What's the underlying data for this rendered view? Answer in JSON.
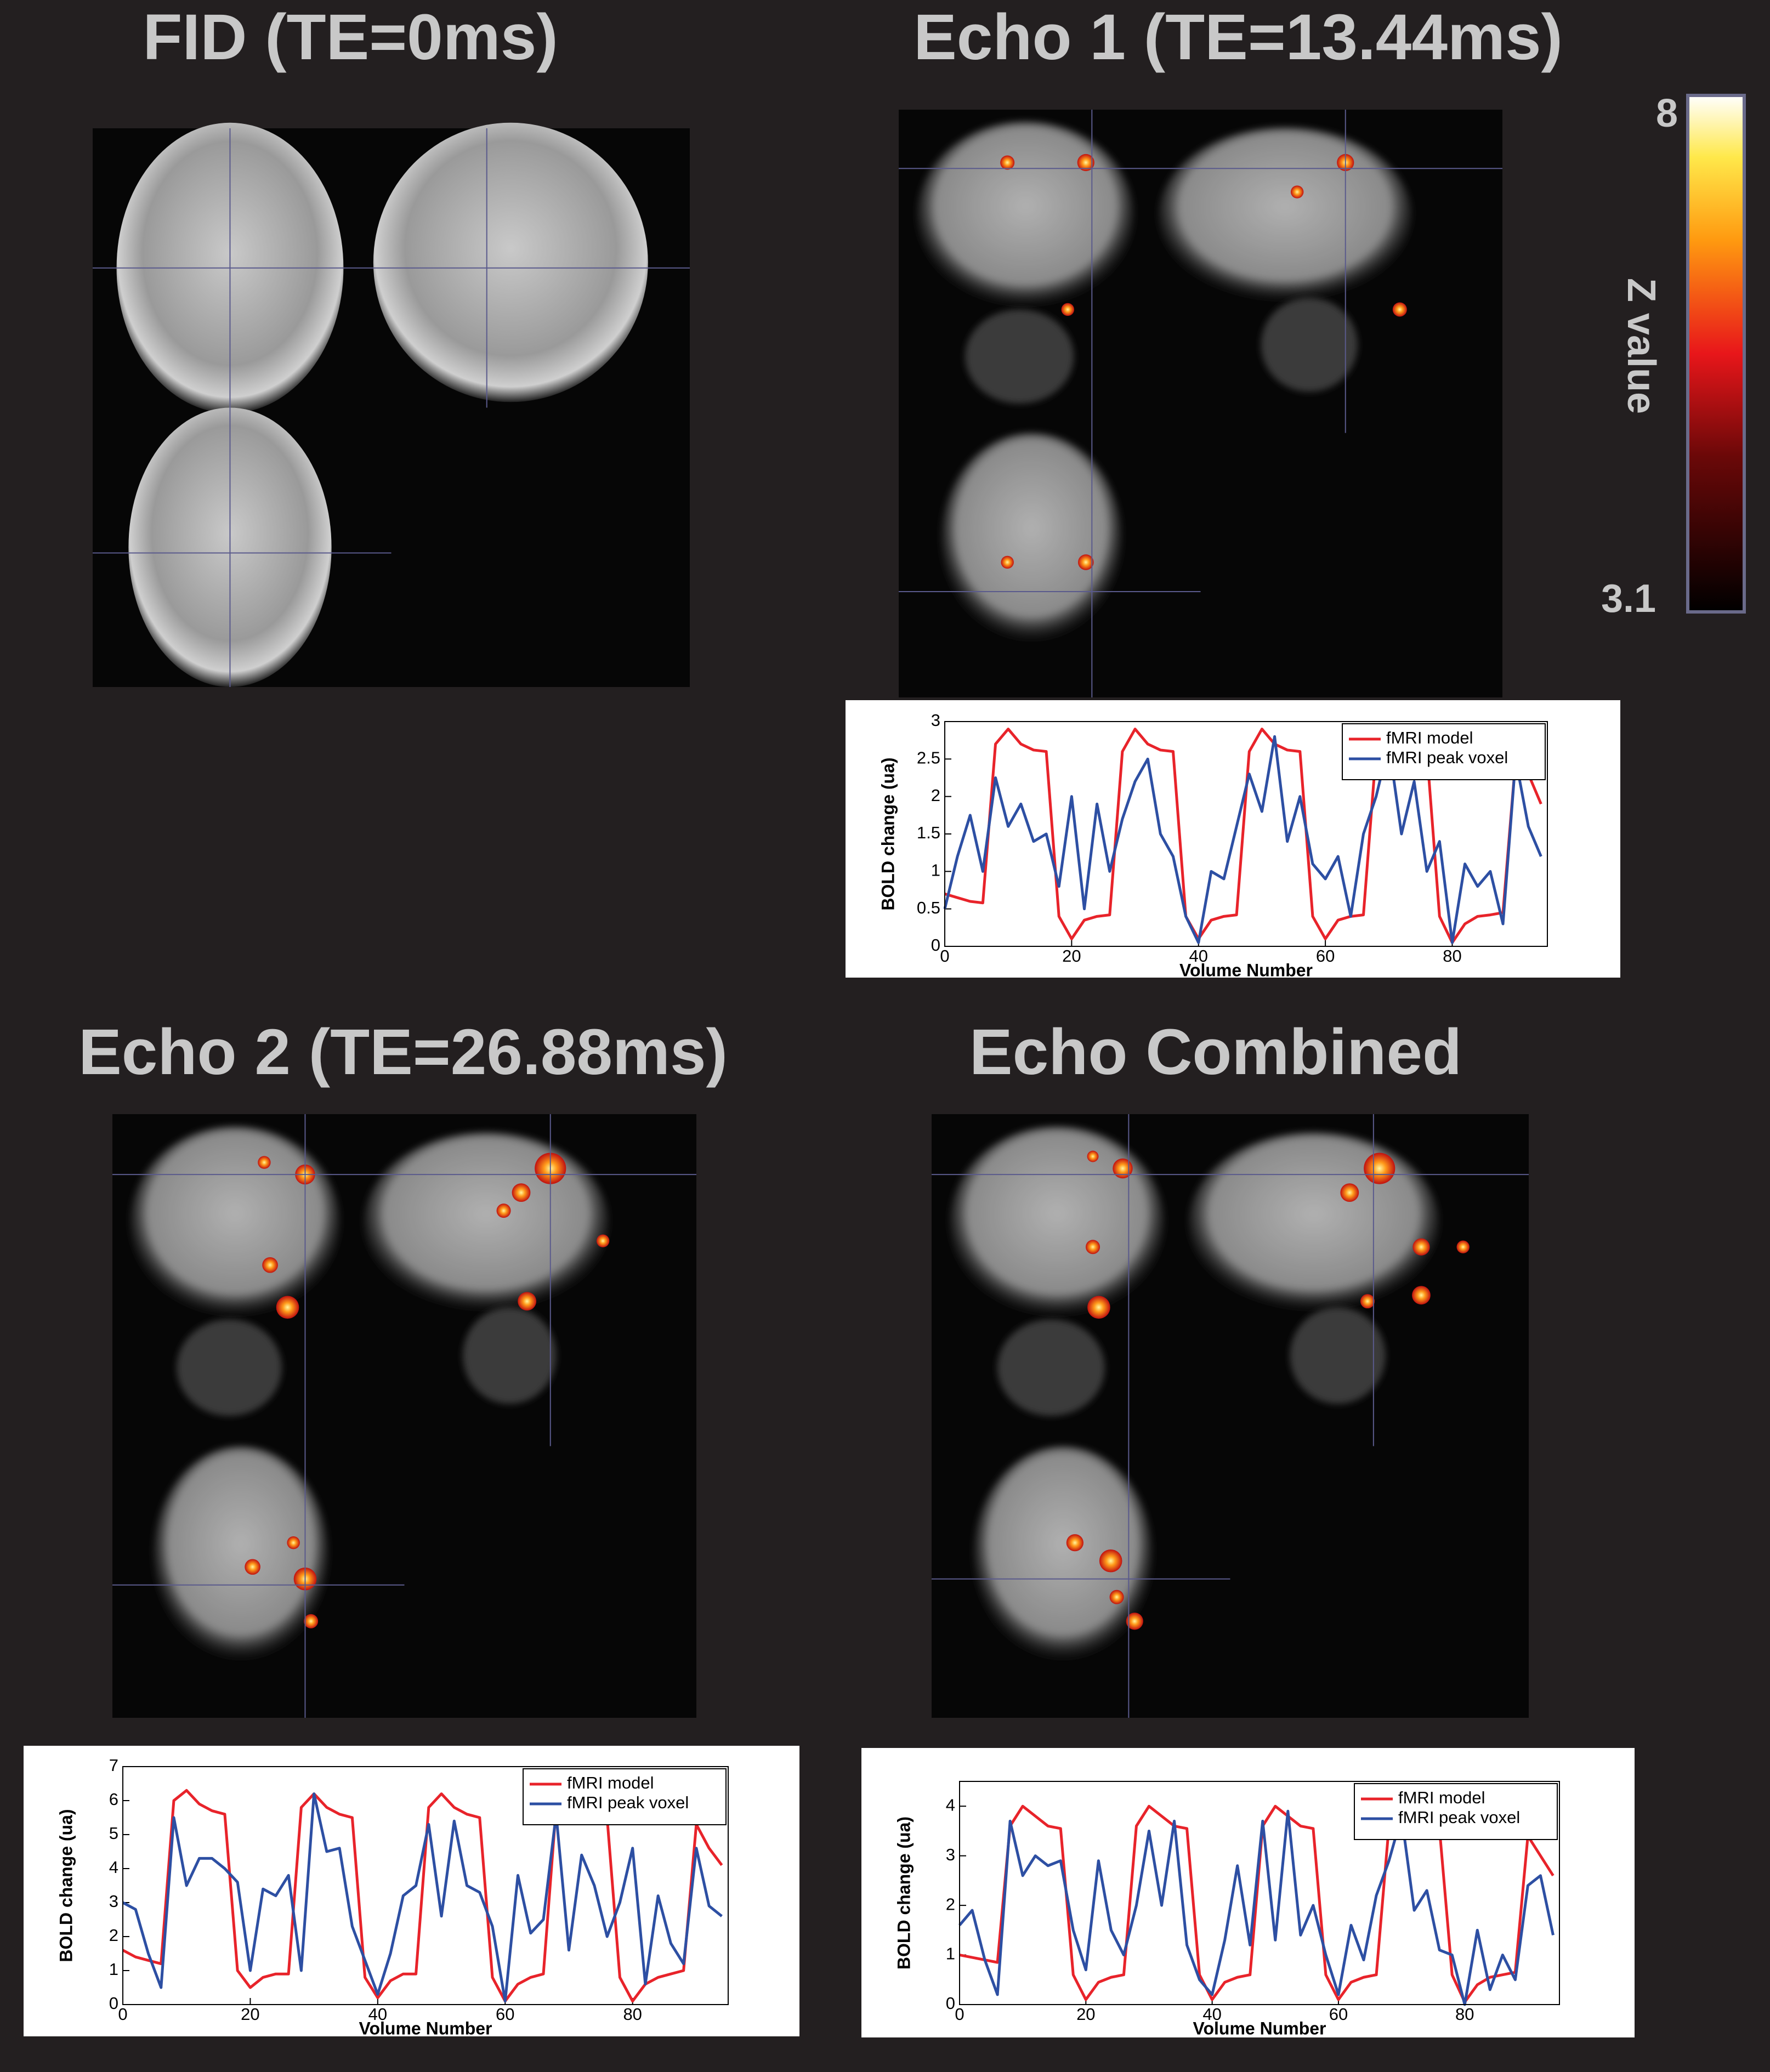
{
  "panel_titles": [
    "FID (TE=0ms)",
    "Echo 1 (TE=13.44ms)",
    "Echo 2 (TE=26.88ms)",
    "Echo Combined"
  ],
  "colorbar": {
    "max": 8,
    "min": 3.1,
    "label": "Z value"
  },
  "chart_data": [
    {
      "type": "line",
      "xlabel": "Volume Number",
      "ylabel": "BOLD change (ua)",
      "x": [
        0,
        2,
        4,
        6,
        8,
        10,
        12,
        14,
        16,
        18,
        20,
        22,
        24,
        26,
        28,
        30,
        32,
        34,
        36,
        38,
        40,
        42,
        44,
        46,
        48,
        50,
        52,
        54,
        56,
        58,
        60,
        62,
        64,
        66,
        68,
        70,
        72,
        74,
        76,
        78,
        80,
        82,
        84,
        86,
        88,
        90,
        92,
        94
      ],
      "xlim": [
        0,
        95
      ],
      "ylim": [
        0,
        3
      ],
      "xticks": [
        0,
        20,
        40,
        60,
        80
      ],
      "yticks": [
        0,
        0.5,
        1,
        1.5,
        2,
        2.5,
        3
      ],
      "legend": "upper right",
      "series": [
        {
          "name": "fMRI model",
          "color": "#e8232a",
          "values": [
            0.7,
            0.65,
            0.6,
            0.58,
            2.7,
            2.9,
            2.7,
            2.62,
            2.6,
            0.4,
            0.1,
            0.35,
            0.4,
            0.42,
            2.6,
            2.9,
            2.7,
            2.62,
            2.6,
            0.4,
            0.1,
            0.35,
            0.4,
            0.42,
            2.6,
            2.9,
            2.7,
            2.62,
            2.6,
            0.4,
            0.1,
            0.35,
            0.4,
            0.42,
            2.6,
            2.9,
            2.7,
            2.62,
            2.6,
            0.4,
            0.05,
            0.3,
            0.4,
            0.42,
            0.45,
            2.5,
            2.3,
            1.9
          ]
        },
        {
          "name": "fMRI peak voxel",
          "color": "#2d4fa3",
          "values": [
            0.5,
            1.2,
            1.75,
            1.0,
            2.25,
            1.6,
            1.9,
            1.4,
            1.5,
            0.8,
            2.0,
            0.5,
            1.9,
            1.0,
            1.7,
            2.2,
            2.5,
            1.5,
            1.2,
            0.4,
            0.05,
            1.0,
            0.9,
            1.6,
            2.3,
            1.8,
            2.8,
            1.4,
            2.0,
            1.1,
            0.9,
            1.2,
            0.4,
            1.5,
            2.0,
            2.7,
            1.5,
            2.2,
            1.0,
            1.4,
            0.05,
            1.1,
            0.8,
            1.0,
            0.3,
            2.5,
            1.6,
            1.2
          ]
        }
      ]
    },
    {
      "type": "line",
      "xlabel": "Volume Number",
      "ylabel": "BOLD change (ua)",
      "x": [
        0,
        2,
        4,
        6,
        8,
        10,
        12,
        14,
        16,
        18,
        20,
        22,
        24,
        26,
        28,
        30,
        32,
        34,
        36,
        38,
        40,
        42,
        44,
        46,
        48,
        50,
        52,
        54,
        56,
        58,
        60,
        62,
        64,
        66,
        68,
        70,
        72,
        74,
        76,
        78,
        80,
        82,
        84,
        86,
        88,
        90,
        92,
        94
      ],
      "xlim": [
        0,
        95
      ],
      "ylim": [
        0,
        7
      ],
      "xticks": [
        0,
        20,
        40,
        60,
        80
      ],
      "yticks": [
        0,
        1,
        2,
        3,
        4,
        5,
        6,
        7
      ],
      "legend": "upper right",
      "series": [
        {
          "name": "fMRI model",
          "color": "#e8232a",
          "values": [
            1.6,
            1.4,
            1.3,
            1.2,
            6.0,
            6.3,
            5.9,
            5.7,
            5.6,
            1.0,
            0.5,
            0.8,
            0.9,
            0.9,
            5.8,
            6.2,
            5.8,
            5.6,
            5.5,
            0.8,
            0.2,
            0.7,
            0.9,
            0.9,
            5.8,
            6.2,
            5.8,
            5.6,
            5.5,
            0.8,
            0.1,
            0.6,
            0.8,
            0.9,
            5.8,
            6.2,
            5.8,
            5.6,
            5.5,
            0.8,
            0.1,
            0.6,
            0.8,
            0.9,
            1.0,
            5.3,
            4.6,
            4.1
          ]
        },
        {
          "name": "fMRI peak voxel",
          "color": "#2d4fa3",
          "values": [
            3.0,
            2.8,
            1.5,
            0.5,
            5.5,
            3.5,
            4.3,
            4.3,
            4.0,
            3.6,
            1.0,
            3.4,
            3.2,
            3.8,
            1.0,
            6.2,
            4.5,
            4.6,
            2.3,
            1.3,
            0.3,
            1.5,
            3.2,
            3.5,
            5.3,
            2.6,
            5.4,
            3.5,
            3.3,
            2.3,
            0.1,
            3.8,
            2.1,
            2.5,
            5.6,
            1.6,
            4.4,
            3.5,
            2.0,
            3.0,
            4.6,
            0.6,
            3.2,
            1.8,
            1.2,
            4.6,
            2.9,
            2.6
          ]
        }
      ]
    },
    {
      "type": "line",
      "xlabel": "Volume Number",
      "ylabel": "BOLD change (ua)",
      "x": [
        0,
        2,
        4,
        6,
        8,
        10,
        12,
        14,
        16,
        18,
        20,
        22,
        24,
        26,
        28,
        30,
        32,
        34,
        36,
        38,
        40,
        42,
        44,
        46,
        48,
        50,
        52,
        54,
        56,
        58,
        60,
        62,
        64,
        66,
        68,
        70,
        72,
        74,
        76,
        78,
        80,
        82,
        84,
        86,
        88,
        90,
        92,
        94
      ],
      "xlim": [
        0,
        95
      ],
      "ylim": [
        0,
        4.5
      ],
      "xticks": [
        0,
        20,
        40,
        60,
        80
      ],
      "yticks": [
        0,
        1,
        2,
        3,
        4
      ],
      "legend": "upper right",
      "series": [
        {
          "name": "fMRI model",
          "color": "#e8232a",
          "values": [
            1.0,
            0.95,
            0.9,
            0.85,
            3.6,
            4.0,
            3.8,
            3.6,
            3.55,
            0.6,
            0.1,
            0.45,
            0.55,
            0.6,
            3.6,
            4.0,
            3.8,
            3.6,
            3.55,
            0.6,
            0.1,
            0.45,
            0.55,
            0.6,
            3.6,
            4.0,
            3.8,
            3.6,
            3.55,
            0.6,
            0.1,
            0.45,
            0.55,
            0.6,
            3.6,
            4.0,
            3.8,
            3.6,
            3.55,
            0.6,
            0.05,
            0.4,
            0.55,
            0.6,
            0.65,
            3.4,
            3.0,
            2.6
          ]
        },
        {
          "name": "fMRI peak voxel",
          "color": "#2d4fa3",
          "values": [
            1.6,
            1.9,
            0.9,
            0.2,
            3.7,
            2.6,
            3.0,
            2.8,
            2.9,
            1.5,
            0.7,
            2.9,
            1.5,
            1.0,
            2.0,
            3.5,
            2.0,
            3.7,
            1.2,
            0.5,
            0.2,
            1.3,
            2.8,
            1.2,
            3.7,
            1.3,
            3.9,
            1.4,
            2.0,
            1.0,
            0.2,
            1.6,
            0.9,
            2.2,
            2.9,
            3.8,
            1.9,
            2.3,
            1.1,
            1.0,
            0.0,
            1.5,
            0.3,
            1.0,
            0.5,
            2.4,
            2.6,
            1.4
          ]
        }
      ]
    }
  ]
}
